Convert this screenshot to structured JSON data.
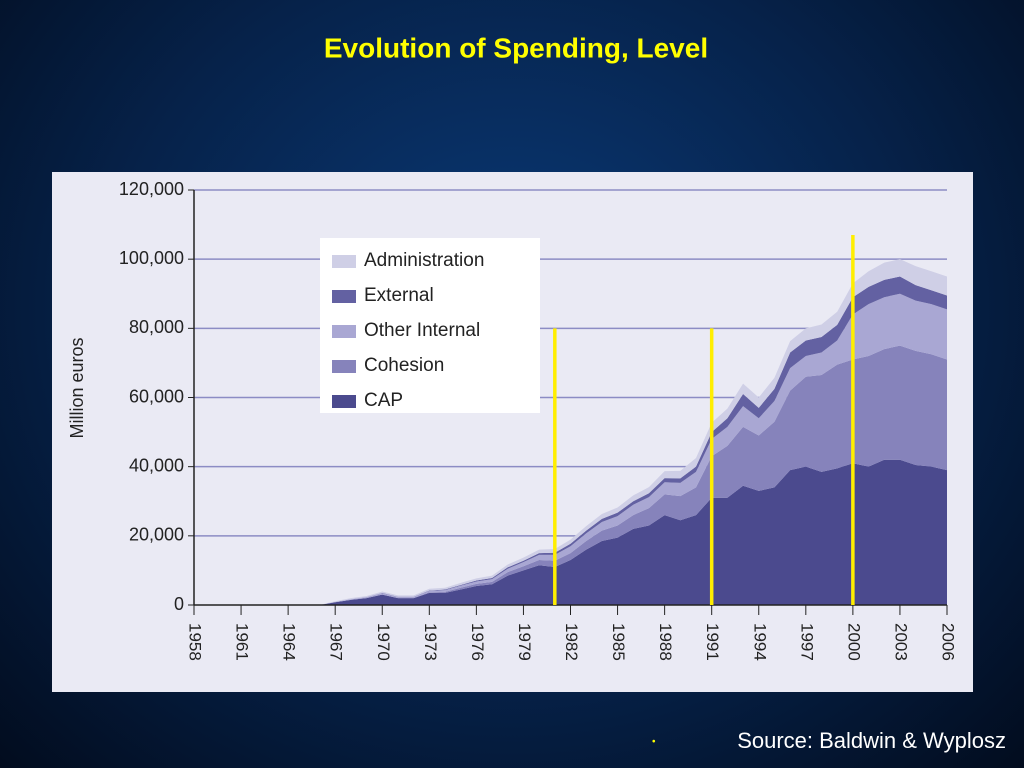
{
  "chart_data": {
    "type": "stacked_area",
    "title": "Evolution of Spending, Level",
    "y_label": "Million euros",
    "x": [
      1958,
      1959,
      1960,
      1961,
      1962,
      1963,
      1964,
      1965,
      1966,
      1967,
      1968,
      1969,
      1970,
      1971,
      1972,
      1973,
      1974,
      1975,
      1976,
      1977,
      1978,
      1979,
      1980,
      1981,
      1982,
      1983,
      1984,
      1985,
      1986,
      1987,
      1988,
      1989,
      1990,
      1991,
      1992,
      1993,
      1994,
      1995,
      1996,
      1997,
      1998,
      1999,
      2000,
      2001,
      2002,
      2003,
      2004,
      2005,
      2006
    ],
    "series": [
      {
        "name": "CAP",
        "color": "#4b4a8e",
        "values": [
          0,
          0,
          0,
          0,
          0,
          0,
          0,
          0,
          0,
          800,
          1500,
          2000,
          3000,
          2000,
          2000,
          3500,
          3500,
          4500,
          5500,
          6000,
          8500,
          10000,
          11500,
          11000,
          13000,
          16000,
          18500,
          19500,
          22000,
          23000,
          26000,
          24500,
          26000,
          31000,
          31000,
          34500,
          33000,
          34000,
          39000,
          40000,
          38500,
          39500,
          41000,
          40000,
          42000,
          42000,
          40500,
          40000,
          39000
        ]
      },
      {
        "name": "Cohesion",
        "color": "#8683bb",
        "values": [
          0,
          0,
          0,
          0,
          0,
          0,
          0,
          0,
          0,
          0,
          0,
          0,
          0,
          0,
          0,
          200,
          300,
          500,
          600,
          700,
          1000,
          1200,
          1500,
          1800,
          2000,
          2500,
          3000,
          3500,
          4000,
          5000,
          6000,
          7000,
          8000,
          12000,
          15000,
          17000,
          16000,
          19000,
          23000,
          26000,
          28000,
          30000,
          30000,
          32000,
          32000,
          33000,
          33000,
          32500,
          32000
        ]
      },
      {
        "name": "Other Internal",
        "color": "#a9a7d3",
        "values": [
          0,
          0,
          0,
          0,
          0,
          0,
          0,
          0,
          0,
          100,
          200,
          300,
          400,
          300,
          300,
          400,
          500,
          600,
          700,
          800,
          1000,
          1200,
          1500,
          1700,
          2000,
          2200,
          2500,
          2700,
          3000,
          3200,
          3500,
          3800,
          4500,
          5000,
          5500,
          6000,
          5000,
          6000,
          6500,
          6000,
          6500,
          7000,
          13000,
          15000,
          15000,
          15000,
          14500,
          14500,
          14500
        ]
      },
      {
        "name": "External",
        "color": "#6361a2",
        "values": [
          0,
          0,
          0,
          0,
          0,
          0,
          0,
          0,
          0,
          0,
          0,
          0,
          100,
          100,
          100,
          100,
          200,
          200,
          300,
          300,
          400,
          400,
          500,
          600,
          700,
          800,
          900,
          1000,
          1000,
          1100,
          1200,
          1300,
          1500,
          2000,
          2500,
          3500,
          3000,
          3500,
          4500,
          4500,
          4500,
          4500,
          5000,
          5000,
          5000,
          5000,
          4500,
          4000,
          4000
        ]
      },
      {
        "name": "Administration",
        "color": "#cfcfe6",
        "values": [
          0,
          0,
          0,
          0,
          0,
          0,
          0,
          0,
          0,
          200,
          300,
          300,
          400,
          400,
          400,
          500,
          500,
          600,
          600,
          700,
          800,
          900,
          1000,
          1100,
          1200,
          1300,
          1400,
          1500,
          1700,
          1800,
          2000,
          2200,
          2500,
          2700,
          2800,
          3000,
          3000,
          3200,
          3300,
          3500,
          3600,
          3800,
          4000,
          4500,
          5000,
          5000,
          5500,
          5500,
          5500
        ]
      }
    ],
    "xlim": [
      1958,
      2006
    ],
    "xticks": [
      1958,
      1961,
      1964,
      1967,
      1970,
      1973,
      1976,
      1979,
      1982,
      1985,
      1988,
      1991,
      1994,
      1997,
      2000,
      2003,
      2006
    ],
    "ylim": [
      0,
      120000
    ],
    "yticks": [
      0,
      {
        "value": 20000,
        "label": "20,000"
      },
      {
        "value": 40000,
        "label": "40,000"
      },
      {
        "value": 60000,
        "label": "60,000"
      },
      {
        "value": 80000,
        "label": "80,000"
      },
      {
        "value": 100000,
        "label": "100,000"
      },
      {
        "value": 120000,
        "label": "120,000"
      }
    ],
    "grid": true,
    "markers": [
      {
        "x": 1981,
        "y": 80000,
        "color": "#ffee00"
      },
      {
        "x": 1991,
        "y": 80000,
        "color": "#ffee00"
      },
      {
        "x": 2000,
        "y": 107000,
        "color": "#ffee00"
      }
    ]
  },
  "slide": {
    "source": "Source: Baldwin & Wyplosz"
  }
}
